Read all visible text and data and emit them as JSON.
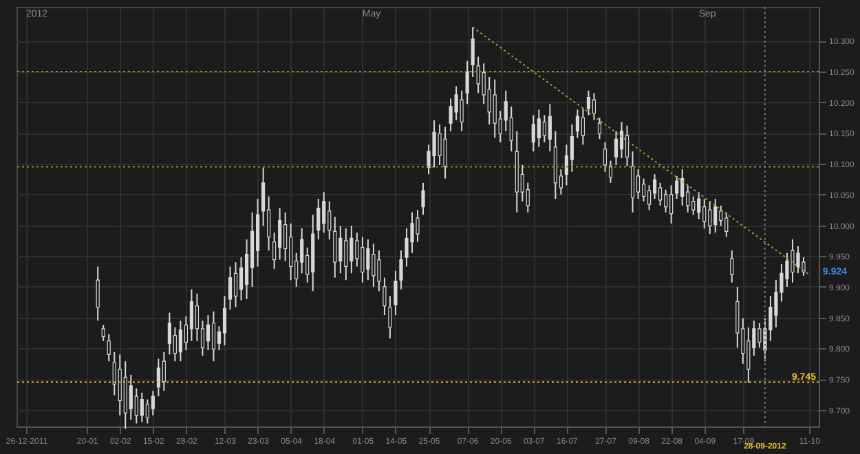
{
  "chart_data": {
    "type": "candlestick",
    "categories": [
      "26-12-2011",
      null,
      null,
      null,
      null,
      null,
      null,
      null,
      null,
      null,
      null,
      "20-01",
      null,
      null,
      null,
      null,
      null,
      "02-02",
      null,
      null,
      null,
      null,
      null,
      "15-02",
      null,
      null,
      null,
      null,
      null,
      "28-02",
      null,
      null,
      null,
      null,
      null,
      null,
      "12-03",
      null,
      null,
      null,
      null,
      null,
      "23-03",
      null,
      null,
      null,
      null,
      null,
      "05-04",
      null,
      null,
      null,
      null,
      null,
      "18-04",
      null,
      null,
      null,
      null,
      null,
      null,
      "01-05",
      null,
      null,
      null,
      null,
      null,
      "14-05",
      null,
      null,
      null,
      null,
      null,
      "25-05",
      null,
      null,
      null,
      null,
      null,
      null,
      "07-06",
      null,
      null,
      null,
      null,
      null,
      "20-06",
      null,
      null,
      null,
      null,
      null,
      "03-07",
      null,
      null,
      null,
      null,
      null,
      "16-07",
      null,
      null,
      null,
      null,
      null,
      null,
      "27-07",
      null,
      null,
      null,
      null,
      null,
      "09-08",
      null,
      null,
      null,
      null,
      null,
      "22-08",
      null,
      null,
      null,
      null,
      null,
      "04-09",
      null,
      null,
      null,
      null,
      null,
      null,
      "17-09",
      null,
      null,
      null,
      "28-09-2012",
      null,
      null,
      null,
      null,
      null,
      null,
      null,
      "11-10"
    ],
    "series": [
      {
        "type": "candlestick",
        "color": "#d8d8d8",
        "ohlc": [
          null,
          null,
          null,
          null,
          null,
          null,
          null,
          null,
          null,
          null,
          null,
          null,
          null,
          [
            9.911,
            9.933,
            9.845,
            9.867
          ],
          [
            9.832,
            9.838,
            9.812,
            9.819
          ],
          [
            9.812,
            9.823,
            9.779,
            9.79
          ],
          [
            9.777,
            9.794,
            9.724,
            9.742
          ],
          [
            9.766,
            9.79,
            9.691,
            9.715
          ],
          [
            9.753,
            9.779,
            9.669,
            9.695
          ],
          [
            9.702,
            9.757,
            9.684,
            9.739
          ],
          [
            9.722,
            9.735,
            9.678,
            9.691
          ],
          [
            9.691,
            9.728,
            9.68,
            9.717
          ],
          [
            9.709,
            9.717,
            9.678,
            9.687
          ],
          [
            9.702,
            9.731,
            9.691,
            9.722
          ],
          [
            9.737,
            9.783,
            9.722,
            9.768
          ],
          [
            9.779,
            9.794,
            9.731,
            9.746
          ],
          [
            9.808,
            9.858,
            9.79,
            9.841
          ],
          [
            9.821,
            9.834,
            9.779,
            9.792
          ],
          [
            9.794,
            9.845,
            9.779,
            9.83
          ],
          [
            9.838,
            9.852,
            9.797,
            9.81
          ],
          [
            9.832,
            9.896,
            9.812,
            9.876
          ],
          [
            9.869,
            9.889,
            9.812,
            9.832
          ],
          [
            9.832,
            9.845,
            9.788,
            9.801
          ],
          [
            9.812,
            9.854,
            9.797,
            9.838
          ],
          [
            9.841,
            9.86,
            9.779,
            9.799
          ],
          [
            9.808,
            9.836,
            9.797,
            9.827
          ],
          [
            9.825,
            9.885,
            9.805,
            9.865
          ],
          [
            9.88,
            9.933,
            9.863,
            9.915
          ],
          [
            9.922,
            9.94,
            9.867,
            9.885
          ],
          [
            9.896,
            9.948,
            9.878,
            9.931
          ],
          [
            9.904,
            9.977,
            9.88,
            9.953
          ],
          [
            9.931,
            10.021,
            9.9,
            9.99
          ],
          [
            9.959,
            10.043,
            9.933,
            10.017
          ],
          [
            10.023,
            10.094,
            9.999,
            10.069
          ],
          [
            10.025,
            10.047,
            9.959,
            9.981
          ],
          [
            9.973,
            9.988,
            9.929,
            9.944
          ],
          [
            9.964,
            10.028,
            9.944,
            10.008
          ],
          [
            10.001,
            10.021,
            9.942,
            9.962
          ],
          [
            9.981,
            10.003,
            9.911,
            9.933
          ],
          [
            9.942,
            9.955,
            9.9,
            9.913
          ],
          [
            9.94,
            9.995,
            9.922,
            9.977
          ],
          [
            9.951,
            9.964,
            9.907,
            9.92
          ],
          [
            9.924,
            10.017,
            9.893,
            9.986
          ],
          [
            9.992,
            10.043,
            9.977,
            10.028
          ],
          [
            10.003,
            10.054,
            9.988,
            10.039
          ],
          [
            10.023,
            10.039,
            9.977,
            9.992
          ],
          [
            9.99,
            10.014,
            9.915,
            9.94
          ],
          [
            9.942,
            9.999,
            9.922,
            9.979
          ],
          [
            9.975,
            9.995,
            9.911,
            9.933
          ],
          [
            9.942,
            9.999,
            9.922,
            9.979
          ],
          [
            9.975,
            9.988,
            9.933,
            9.946
          ],
          [
            9.964,
            9.981,
            9.907,
            9.924
          ],
          [
            9.929,
            9.977,
            9.911,
            9.962
          ],
          [
            9.953,
            9.97,
            9.9,
            9.918
          ],
          [
            9.944,
            9.959,
            9.893,
            9.909
          ],
          [
            9.9,
            9.915,
            9.854,
            9.869
          ],
          [
            9.867,
            9.885,
            9.816,
            9.834
          ],
          [
            9.871,
            9.926,
            9.854,
            9.909
          ],
          [
            9.911,
            9.959,
            9.896,
            9.944
          ],
          [
            9.948,
            9.995,
            9.933,
            9.979
          ],
          [
            9.973,
            10.021,
            9.955,
            10.003
          ],
          [
            10.012,
            10.025,
            9.973,
            9.986
          ],
          [
            10.03,
            10.069,
            10.017,
            10.056
          ],
          [
            10.094,
            10.131,
            10.083,
            10.12
          ],
          [
            10.113,
            10.171,
            10.094,
            10.151
          ],
          [
            10.149,
            10.164,
            10.098,
            10.113
          ],
          [
            10.14,
            10.16,
            10.076,
            10.096
          ],
          [
            10.166,
            10.206,
            10.153,
            10.193
          ],
          [
            10.184,
            10.226,
            10.171,
            10.212
          ],
          [
            10.204,
            10.219,
            10.153,
            10.168
          ],
          [
            10.215,
            10.267,
            10.197,
            10.25
          ],
          [
            10.261,
            10.322,
            10.241,
            10.303
          ],
          [
            10.259,
            10.274,
            10.215,
            10.23
          ],
          [
            10.248,
            10.263,
            10.197,
            10.212
          ],
          [
            10.221,
            10.241,
            10.164,
            10.184
          ],
          [
            10.212,
            10.237,
            10.142,
            10.166
          ],
          [
            10.173,
            10.186,
            10.135,
            10.149
          ],
          [
            10.171,
            10.219,
            10.153,
            10.201
          ],
          [
            10.175,
            10.193,
            10.12,
            10.138
          ],
          [
            10.12,
            10.153,
            10.021,
            10.054
          ],
          [
            10.083,
            10.098,
            10.039,
            10.054
          ],
          [
            10.058,
            10.069,
            10.021,
            10.032
          ],
          [
            10.135,
            10.179,
            10.12,
            10.164
          ],
          [
            10.142,
            10.188,
            10.127,
            10.173
          ],
          [
            10.168,
            10.179,
            10.135,
            10.146
          ],
          [
            10.14,
            10.197,
            10.12,
            10.177
          ],
          [
            10.127,
            10.153,
            10.043,
            10.069
          ],
          [
            10.08,
            10.091,
            10.05,
            10.061
          ],
          [
            10.083,
            10.131,
            10.065,
            10.113
          ],
          [
            10.107,
            10.164,
            10.087,
            10.144
          ],
          [
            10.153,
            10.188,
            10.142,
            10.177
          ],
          [
            10.175,
            10.19,
            10.131,
            10.146
          ],
          [
            10.19,
            10.219,
            10.179,
            10.208
          ],
          [
            10.204,
            10.215,
            10.171,
            10.182
          ],
          [
            10.166,
            10.175,
            10.14,
            10.149
          ],
          [
            10.124,
            10.135,
            10.087,
            10.098
          ],
          [
            10.096,
            10.105,
            10.069,
            10.078
          ],
          [
            10.111,
            10.153,
            10.098,
            10.14
          ],
          [
            10.124,
            10.168,
            10.109,
            10.153
          ],
          [
            10.146,
            10.162,
            10.096,
            10.111
          ],
          [
            10.096,
            10.12,
            10.021,
            10.045
          ],
          [
            10.08,
            10.091,
            10.043,
            10.054
          ],
          [
            10.067,
            10.076,
            10.039,
            10.047
          ],
          [
            10.056,
            10.065,
            10.025,
            10.034
          ],
          [
            10.052,
            10.083,
            10.043,
            10.074
          ],
          [
            10.061,
            10.069,
            10.032,
            10.041
          ],
          [
            10.05,
            10.058,
            10.021,
            10.03
          ],
          [
            10.05,
            10.065,
            10.003,
            10.019
          ],
          [
            10.052,
            10.08,
            10.043,
            10.072
          ],
          [
            10.047,
            10.091,
            10.032,
            10.076
          ],
          [
            10.054,
            10.065,
            10.021,
            10.032
          ],
          [
            10.039,
            10.047,
            10.017,
            10.025
          ],
          [
            10.021,
            10.054,
            10.01,
            10.043
          ],
          [
            10.03,
            10.043,
            9.995,
            10.006
          ],
          [
            10.025,
            10.039,
            9.986,
            9.999
          ],
          [
            10.001,
            10.043,
            9.988,
            10.03
          ],
          [
            10.023,
            10.032,
            9.999,
            10.008
          ],
          [
            10.012,
            10.021,
            9.981,
            9.99
          ],
          [
            9.946,
            9.959,
            9.907,
            9.92
          ],
          [
            9.876,
            9.9,
            9.801,
            9.825
          ],
          [
            9.832,
            9.849,
            9.775,
            9.792
          ],
          [
            9.812,
            9.834,
            9.744,
            9.766
          ],
          [
            9.801,
            9.845,
            9.788,
            9.832
          ],
          [
            9.832,
            9.841,
            9.801,
            9.81
          ],
          [
            9.797,
            9.849,
            9.779,
            9.832
          ],
          [
            9.83,
            9.885,
            9.812,
            9.867
          ],
          [
            9.854,
            9.911,
            9.834,
            9.891
          ],
          [
            9.891,
            9.937,
            9.876,
            9.922
          ],
          [
            9.913,
            9.955,
            9.9,
            9.942
          ],
          [
            9.959,
            9.977,
            9.907,
            9.924
          ],
          [
            9.933,
            9.966,
            9.922,
            9.955
          ],
          [
            9.94,
            9.948,
            9.918,
            9.924
          ],
          null
        ]
      },
      {
        "type": "line",
        "values": [
          null,
          null,
          null,
          null,
          null,
          null,
          null,
          null,
          null,
          null,
          null,
          null,
          null,
          null,
          null,
          null,
          null,
          null,
          null,
          null,
          null,
          null,
          null,
          null,
          null,
          null,
          null,
          null,
          null,
          null,
          null,
          null,
          null,
          null,
          null,
          null,
          null,
          null,
          null,
          null,
          null,
          null,
          null,
          null,
          null,
          null,
          null,
          null,
          null,
          null,
          null,
          null,
          null,
          null,
          null,
          null,
          null,
          null,
          null,
          null,
          null,
          null,
          null,
          null,
          null,
          null,
          null,
          null,
          null,
          null,
          null,
          null,
          null,
          null,
          null,
          null,
          null,
          null,
          null,
          null,
          null,
          10.322,
          null,
          null,
          null,
          null,
          null,
          null,
          null,
          null,
          null,
          null,
          null,
          null,
          null,
          null,
          null,
          null,
          null,
          null,
          null,
          null,
          null,
          null,
          null,
          null,
          null,
          null,
          null,
          null,
          null,
          null,
          null,
          null,
          null,
          null,
          null,
          null,
          null,
          null,
          null,
          null,
          null,
          null,
          null,
          null,
          null,
          null,
          null,
          null,
          null,
          null,
          null,
          null,
          null,
          null,
          null,
          null,
          null,
          null,
          null,
          null,
          9.92
        ],
        "color": "#9c9c3c",
        "line_style": "dotted"
      }
    ],
    "ylim": [
      9.673,
      10.355
    ],
    "yticks": [
      {
        "value": 9.7,
        "label": "9.700"
      },
      {
        "value": 9.75,
        "label": "9.750"
      },
      {
        "value": 9.8,
        "label": "9.800"
      },
      {
        "value": 9.85,
        "label": "9.850"
      },
      {
        "value": 9.9,
        "label": "9.900"
      },
      {
        "value": 9.95,
        "label": "9.950"
      },
      {
        "value": 10.0,
        "label": "10.000"
      },
      {
        "value": 10.05,
        "label": "10.050"
      },
      {
        "value": 10.1,
        "label": "10.100"
      },
      {
        "value": 10.15,
        "label": "10.150"
      },
      {
        "value": 10.2,
        "label": "10.200"
      },
      {
        "value": 10.25,
        "label": "10.250"
      },
      {
        "value": 10.3,
        "label": "10.300"
      }
    ],
    "ref_lines": [
      {
        "axis": "y",
        "value": 10.25,
        "color": "#8c8c30",
        "line_style": "dotted"
      },
      {
        "axis": "y",
        "value": 10.095,
        "color": "#8c8c30",
        "line_style": "dotted"
      },
      {
        "axis": "y",
        "value": 9.745,
        "label": "9.745",
        "color": "#e8c020",
        "line_style": "dotted"
      },
      {
        "axis": "x",
        "value": "28-09-2012",
        "color": "#707070",
        "line_style": "dotted"
      }
    ],
    "annotations": [
      "9.924",
      "2012",
      "May",
      "Sep"
    ],
    "grid": true
  }
}
